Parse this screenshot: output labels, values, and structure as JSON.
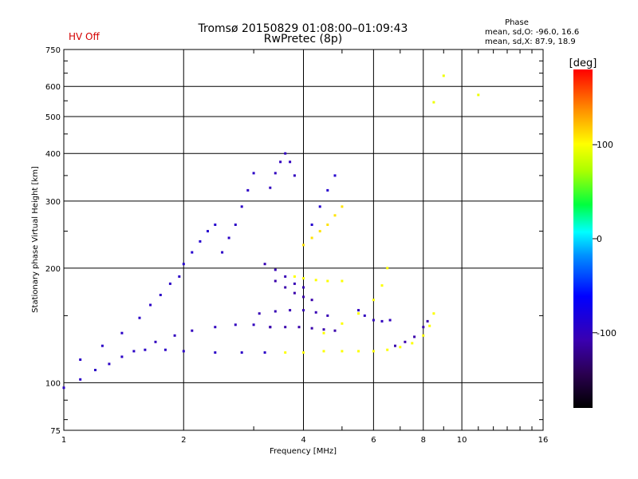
{
  "chart_data": {
    "type": "scatter",
    "title": "Tromsø 20150829 01:08:00–01:09:43",
    "subtitle": "RwPretec (8p)",
    "status_label": "HV Off",
    "xlabel": "Frequency [MHz]",
    "ylabel": "Stationary phase Virtual Height [km]",
    "x_scale": "log",
    "y_scale": "log",
    "xlim": [
      1,
      16
    ],
    "ylim": [
      75,
      750
    ],
    "x_ticks": [
      1,
      2,
      4,
      6,
      8,
      10,
      16
    ],
    "x_tick_labels": [
      "1",
      "2",
      "4",
      "6",
      "8",
      "10",
      "16"
    ],
    "y_ticks": [
      75,
      100,
      200,
      300,
      400,
      500,
      600,
      750
    ],
    "y_tick_labels": [
      "75",
      "100",
      "200",
      "300",
      "400",
      "500",
      "600",
      "750"
    ],
    "grid": true,
    "phase_stats": {
      "heading": "Phase",
      "line_o": "mean, sd,O: -96.0, 16.6",
      "line_x": "mean, sd,X:  87.9, 18.9"
    },
    "colorbar": {
      "label": "[deg]",
      "min": -180,
      "max": 180,
      "ticks": [
        100,
        0,
        -100
      ],
      "tick_labels": [
        "100",
        "0",
        "-100"
      ],
      "colormap": "rainbow"
    },
    "traces": [
      {
        "name": "",
        "phase": -95,
        "points": [
          [
            1.0,
            97
          ],
          [
            1.1,
            102
          ],
          [
            1.2,
            108
          ],
          [
            1.3,
            112
          ],
          [
            1.4,
            117
          ],
          [
            1.5,
            121
          ],
          [
            1.6,
            122
          ],
          [
            1.8,
            122
          ],
          [
            2.0,
            121
          ],
          [
            2.4,
            120
          ],
          [
            2.8,
            120
          ],
          [
            3.2,
            120
          ]
        ]
      },
      {
        "name": "",
        "phase": -95,
        "points": [
          [
            1.1,
            115
          ],
          [
            1.25,
            125
          ],
          [
            1.4,
            135
          ],
          [
            1.55,
            148
          ],
          [
            1.65,
            160
          ],
          [
            1.75,
            170
          ],
          [
            1.85,
            182
          ],
          [
            1.95,
            190
          ]
        ]
      },
      {
        "name": "",
        "phase": -100,
        "points": [
          [
            1.7,
            128
          ],
          [
            1.9,
            133
          ],
          [
            2.1,
            137
          ],
          [
            2.4,
            140
          ],
          [
            2.7,
            142
          ],
          [
            3.0,
            142
          ],
          [
            3.3,
            140
          ]
        ]
      },
      {
        "name": "",
        "phase": -105,
        "points": [
          [
            3.2,
            205
          ],
          [
            3.4,
            198
          ],
          [
            3.6,
            190
          ],
          [
            3.8,
            182
          ],
          [
            4.0,
            178
          ]
        ]
      },
      {
        "name": "",
        "phase": -110,
        "points": [
          [
            3.4,
            185
          ],
          [
            3.6,
            178
          ],
          [
            3.8,
            172
          ],
          [
            4.0,
            168
          ],
          [
            4.2,
            165
          ]
        ]
      },
      {
        "name": "",
        "phase": -105,
        "points": [
          [
            3.1,
            152
          ],
          [
            3.4,
            154
          ],
          [
            3.7,
            155
          ],
          [
            4.0,
            155
          ],
          [
            4.3,
            153
          ],
          [
            4.6,
            150
          ]
        ]
      },
      {
        "name": "",
        "phase": -110,
        "points": [
          [
            3.3,
            140
          ],
          [
            3.6,
            140
          ],
          [
            3.9,
            140
          ],
          [
            4.2,
            139
          ],
          [
            4.5,
            138
          ],
          [
            4.8,
            137
          ]
        ]
      },
      {
        "name": "",
        "phase": -100,
        "points": [
          [
            3.3,
            325
          ],
          [
            3.4,
            355
          ],
          [
            3.5,
            380
          ],
          [
            3.6,
            400
          ],
          [
            3.7,
            380
          ],
          [
            3.8,
            350
          ]
        ]
      },
      {
        "name": "",
        "phase": -90,
        "points": [
          [
            2.0,
            205
          ],
          [
            2.1,
            220
          ],
          [
            2.2,
            235
          ],
          [
            2.3,
            250
          ],
          [
            2.4,
            260
          ]
        ]
      },
      {
        "name": "",
        "phase": -95,
        "points": [
          [
            2.5,
            220
          ],
          [
            2.6,
            240
          ],
          [
            2.7,
            260
          ],
          [
            2.8,
            290
          ],
          [
            2.9,
            320
          ],
          [
            3.0,
            355
          ]
        ]
      },
      {
        "name": "",
        "phase": -90,
        "points": [
          [
            4.2,
            260
          ],
          [
            4.4,
            290
          ],
          [
            4.6,
            320
          ],
          [
            4.8,
            350
          ]
        ]
      },
      {
        "name": "",
        "phase": 100,
        "points": [
          [
            3.6,
            120
          ],
          [
            4.0,
            120
          ],
          [
            4.5,
            121
          ],
          [
            5.0,
            121
          ],
          [
            5.5,
            121
          ],
          [
            6.0,
            121
          ],
          [
            6.5,
            122
          ],
          [
            7.0,
            124
          ],
          [
            7.5,
            127
          ],
          [
            8.0,
            133
          ],
          [
            8.3,
            141
          ],
          [
            8.5,
            152
          ]
        ]
      },
      {
        "name": "",
        "phase": 100,
        "points": [
          [
            3.8,
            190
          ],
          [
            4.0,
            188
          ],
          [
            4.3,
            186
          ],
          [
            4.6,
            185
          ],
          [
            5.0,
            185
          ]
        ]
      },
      {
        "name": "",
        "phase": 100,
        "points": [
          [
            4.5,
            135
          ],
          [
            5.0,
            143
          ],
          [
            5.5,
            152
          ],
          [
            6.0,
            165
          ],
          [
            6.3,
            180
          ],
          [
            6.5,
            200
          ]
        ]
      },
      {
        "name": "",
        "phase": 110,
        "points": [
          [
            4.0,
            230
          ],
          [
            4.2,
            240
          ],
          [
            4.4,
            250
          ],
          [
            4.6,
            260
          ],
          [
            4.8,
            275
          ],
          [
            5.0,
            290
          ]
        ]
      },
      {
        "name": "",
        "phase": -110,
        "points": [
          [
            6.8,
            125
          ],
          [
            7.2,
            128
          ],
          [
            7.6,
            132
          ],
          [
            8.0,
            140
          ],
          [
            8.2,
            145
          ]
        ]
      },
      {
        "name": "",
        "phase": -100,
        "points": [
          [
            5.5,
            155
          ],
          [
            5.7,
            150
          ],
          [
            6.0,
            146
          ],
          [
            6.3,
            145
          ],
          [
            6.6,
            146
          ]
        ]
      },
      {
        "name": "",
        "phase": 95,
        "points": [
          [
            8.5,
            545
          ],
          [
            9.0,
            640
          ],
          [
            11.0,
            570
          ]
        ]
      }
    ]
  }
}
